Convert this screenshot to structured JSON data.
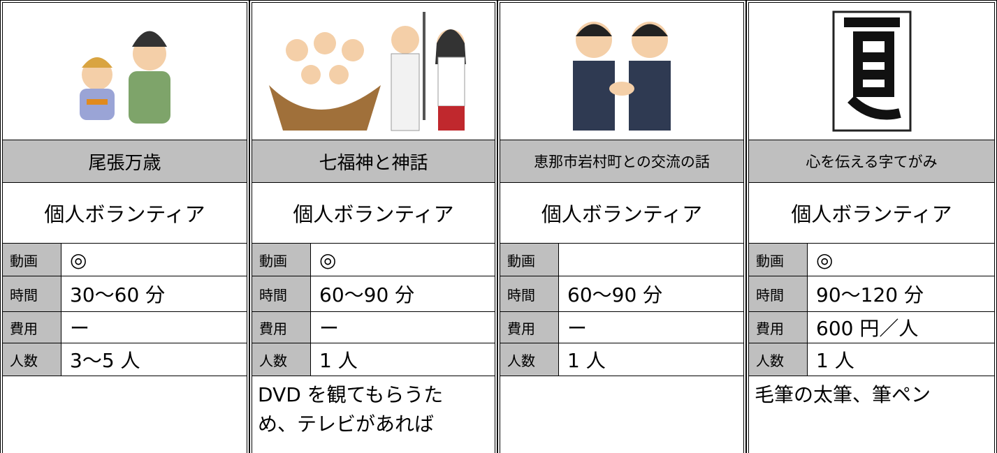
{
  "cards": [
    {
      "title": "尾張万歳",
      "type": "個人ボランティア",
      "rows": [
        {
          "label": "動画",
          "value": "◎"
        },
        {
          "label": "時間",
          "value": "30～60 分"
        },
        {
          "label": "費用",
          "value": "ー"
        },
        {
          "label": "人数",
          "value": "3～5 人"
        }
      ]
    },
    {
      "title": "七福神と神話",
      "type": "個人ボランティア",
      "rows": [
        {
          "label": "動画",
          "value": "◎"
        },
        {
          "label": "時間",
          "value": "60～90 分"
        },
        {
          "label": "費用",
          "value": "ー"
        },
        {
          "label": "人数",
          "value": "1 人"
        }
      ],
      "note": [
        "DVD を観てもらうた",
        "め、テレビがあれば"
      ]
    },
    {
      "title": "恵那市岩村町との交流の話",
      "type": "個人ボランティア",
      "rows": [
        {
          "label": "動画"
        },
        {
          "label": "時間",
          "value": "60～90 分"
        },
        {
          "label": "費用",
          "value": "ー"
        },
        {
          "label": "人数",
          "value": "1 人"
        }
      ]
    },
    {
      "title": "心を伝える字てがみ",
      "type": "個人ボランティア",
      "rows": [
        {
          "label": "動画",
          "value": "◎"
        },
        {
          "label": "時間",
          "value": "90～120 分"
        },
        {
          "label": "費用",
          "value": "600 円／人"
        },
        {
          "label": "人数",
          "value": "1 人"
        }
      ],
      "note": [
        "毛筆の太筆、筆ペン"
      ]
    }
  ]
}
